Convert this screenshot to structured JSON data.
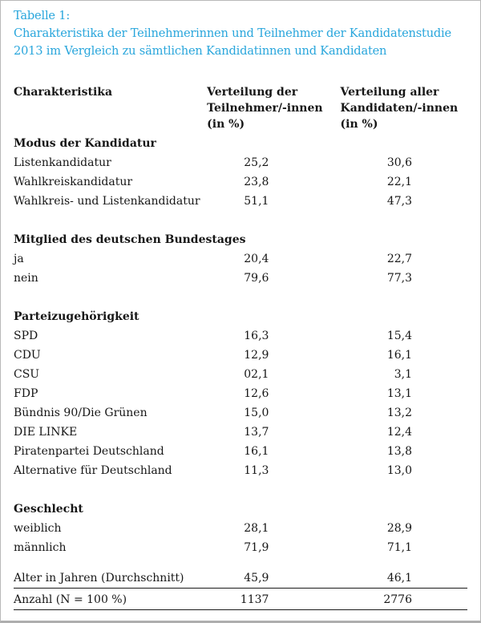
{
  "colors": {
    "title_blue": "#29a6dc",
    "body_text": "#161616",
    "rule": "#1a1a1a",
    "frame_border": "#b9b9b9"
  },
  "title": {
    "label": "Tabelle 1:",
    "text": "Charakteristika der Teilnehmerinnen und Teilnehmer der Kandidatenstudie 2013 im Vergleich zu sämtlichen Kandidatinnen und Kandidaten"
  },
  "table": {
    "header": {
      "col1": "Charakteristika",
      "col2": "Verteilung der\nTeilnehmer/-innen\n(in %)",
      "col3": "Verteilung aller\nKandidaten/-innen\n(in %)"
    },
    "sections": [
      {
        "name": "Modus der Kandidatur",
        "rows": [
          {
            "label": "Listenkandidatur",
            "participants": "25,2",
            "all_candidates": "30,6"
          },
          {
            "label": "Wahlkreiskandidatur",
            "participants": "23,8",
            "all_candidates": "22,1"
          },
          {
            "label": "Wahlkreis- und Listenkandidatur",
            "participants": "51,1",
            "all_candidates": "47,3"
          }
        ]
      },
      {
        "name": "Mitglied des deutschen Bundestages",
        "rows": [
          {
            "label": "ja",
            "participants": "20,4",
            "all_candidates": "22,7"
          },
          {
            "label": "nein",
            "participants": "79,6",
            "all_candidates": "77,3"
          }
        ]
      },
      {
        "name": "Parteizugehörigkeit",
        "rows": [
          {
            "label": "SPD",
            "participants": "16,3",
            "all_candidates": "15,4"
          },
          {
            "label": "CDU",
            "participants": "12,9",
            "all_candidates": "16,1"
          },
          {
            "label": "CSU",
            "participants": "02,1",
            "all_candidates": "3,1"
          },
          {
            "label": "FDP",
            "participants": "12,6",
            "all_candidates": "13,1"
          },
          {
            "label": "Bündnis 90/Die Grünen",
            "participants": "15,0",
            "all_candidates": "13,2"
          },
          {
            "label": "DIE LINKE",
            "participants": "13,7",
            "all_candidates": "12,4"
          },
          {
            "label": "Piratenpartei Deutschland",
            "participants": "16,1",
            "all_candidates": "13,8"
          },
          {
            "label": "Alternative für Deutschland",
            "participants": "11,3",
            "all_candidates": "13,0"
          }
        ]
      },
      {
        "name": "Geschlecht",
        "rows": [
          {
            "label": "weiblich",
            "participants": "28,1",
            "all_candidates": "28,9"
          },
          {
            "label": "männlich",
            "participants": "71,9",
            "all_candidates": "71,1"
          }
        ]
      }
    ],
    "summary_rows": [
      {
        "label": "Alter in Jahren (Durchschnitt)",
        "participants": "45,9",
        "all_candidates": "46,1"
      },
      {
        "label": "Anzahl (N = 100 %)",
        "participants": "1137",
        "all_candidates": "2776"
      }
    ]
  }
}
